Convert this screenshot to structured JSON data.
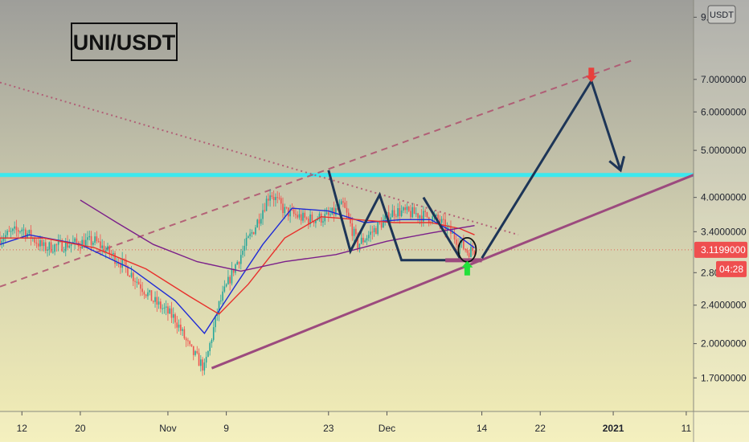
{
  "chart_data": {
    "type": "candlestick",
    "title": "UNI/USDT",
    "currency_button": "USDT",
    "y_scale": "log",
    "ylim": [
      1.45,
      10.2
    ],
    "y_ticks": [
      {
        "value": 9.4,
        "label": "9.",
        "partial": true
      },
      {
        "value": 7.0,
        "label": "7.0000000"
      },
      {
        "value": 6.0,
        "label": "6.0000000"
      },
      {
        "value": 5.0,
        "label": "5.0000000"
      },
      {
        "value": 4.0,
        "label": "4.0000000"
      },
      {
        "value": 3.4,
        "label": "3.4000000"
      },
      {
        "value": 2.8,
        "label": "2.80"
      },
      {
        "value": 2.4,
        "label": "2.4000000"
      },
      {
        "value": 2.0,
        "label": "2.0000000"
      },
      {
        "value": 1.7,
        "label": "1.7000000"
      }
    ],
    "x_axis": {
      "start": "2020-10-09",
      "end": "2021-01-12",
      "ticks": [
        {
          "date": "2020-10-12",
          "label": "12",
          "bold": false
        },
        {
          "date": "2020-10-20",
          "label": "20",
          "bold": false
        },
        {
          "date": "2020-11-01",
          "label": "Nov",
          "bold": false
        },
        {
          "date": "2020-11-09",
          "label": "9",
          "bold": false
        },
        {
          "date": "2020-11-23",
          "label": "23",
          "bold": false
        },
        {
          "date": "2020-12-01",
          "label": "Dec",
          "bold": false
        },
        {
          "date": "2020-12-14",
          "label": "14",
          "bold": false
        },
        {
          "date": "2020-12-22",
          "label": "22",
          "bold": false
        },
        {
          "date": "2021-01-01",
          "label": "2021",
          "bold": true
        },
        {
          "date": "2021-01-11",
          "label": "11",
          "bold": false
        }
      ]
    },
    "last_price": {
      "value": 3.1199,
      "label": "3.1199000",
      "countdown": "04:28"
    },
    "price_anchors": [
      [
        "2020-10-09",
        3.3
      ],
      [
        "2020-10-12",
        3.45
      ],
      [
        "2020-10-15",
        3.15
      ],
      [
        "2020-10-18",
        3.2
      ],
      [
        "2020-10-22",
        3.25
      ],
      [
        "2020-10-26",
        2.9
      ],
      [
        "2020-10-30",
        2.45
      ],
      [
        "2020-11-02",
        2.25
      ],
      [
        "2020-11-04",
        1.95
      ],
      [
        "2020-11-06",
        1.78
      ],
      [
        "2020-11-08",
        2.4
      ],
      [
        "2020-11-10",
        2.85
      ],
      [
        "2020-11-13",
        3.5
      ],
      [
        "2020-11-15",
        4.1
      ],
      [
        "2020-11-17",
        3.75
      ],
      [
        "2020-11-20",
        3.6
      ],
      [
        "2020-11-23",
        3.65
      ],
      [
        "2020-11-25",
        3.85
      ],
      [
        "2020-11-27",
        3.2
      ],
      [
        "2020-11-29",
        3.4
      ],
      [
        "2020-12-02",
        3.75
      ],
      [
        "2020-12-05",
        3.7
      ],
      [
        "2020-12-08",
        3.6
      ],
      [
        "2020-12-10",
        3.35
      ],
      [
        "2020-12-12",
        3.1
      ],
      [
        "2020-12-13",
        3.12
      ]
    ],
    "moving_averages": [
      {
        "color": "#1f2bd6",
        "anchors": [
          [
            "2020-10-09",
            3.2
          ],
          [
            "2020-10-13",
            3.35
          ],
          [
            "2020-10-20",
            3.2
          ],
          [
            "2020-10-27",
            2.85
          ],
          [
            "2020-11-02",
            2.45
          ],
          [
            "2020-11-06",
            2.1
          ],
          [
            "2020-11-10",
            2.6
          ],
          [
            "2020-11-14",
            3.2
          ],
          [
            "2020-11-18",
            3.8
          ],
          [
            "2020-11-23",
            3.75
          ],
          [
            "2020-11-28",
            3.55
          ],
          [
            "2020-12-03",
            3.6
          ],
          [
            "2020-12-07",
            3.6
          ],
          [
            "2020-12-10",
            3.4
          ],
          [
            "2020-12-13",
            3.15
          ]
        ]
      },
      {
        "color": "#e8302c",
        "anchors": [
          [
            "2020-10-09",
            3.3
          ],
          [
            "2020-10-15",
            3.3
          ],
          [
            "2020-10-22",
            3.15
          ],
          [
            "2020-10-29",
            2.85
          ],
          [
            "2020-11-04",
            2.5
          ],
          [
            "2020-11-08",
            2.3
          ],
          [
            "2020-11-12",
            2.65
          ],
          [
            "2020-11-17",
            3.3
          ],
          [
            "2020-11-22",
            3.65
          ],
          [
            "2020-11-27",
            3.6
          ],
          [
            "2020-12-02",
            3.55
          ],
          [
            "2020-12-07",
            3.55
          ],
          [
            "2020-12-11",
            3.45
          ],
          [
            "2020-12-13",
            3.35
          ]
        ]
      },
      {
        "color": "#7b1f8a",
        "anchors": [
          [
            "2020-10-20",
            3.95
          ],
          [
            "2020-10-25",
            3.55
          ],
          [
            "2020-10-30",
            3.2
          ],
          [
            "2020-11-05",
            2.95
          ],
          [
            "2020-11-11",
            2.82
          ],
          [
            "2020-11-17",
            2.95
          ],
          [
            "2020-11-24",
            3.05
          ],
          [
            "2020-12-01",
            3.25
          ],
          [
            "2020-12-07",
            3.38
          ],
          [
            "2020-12-13",
            3.5
          ]
        ]
      }
    ],
    "annotations": {
      "resistance_level": {
        "value": 4.45,
        "color": "#3ce8ee"
      },
      "support_trendline": {
        "from": [
          "2020-11-07",
          1.78
        ],
        "to": [
          "2021-01-12",
          4.45
        ],
        "color": "#9c4a7e"
      },
      "upper_channel_dashed": {
        "from": [
          "2020-10-09",
          2.62
        ],
        "to": [
          "2021-01-04",
          7.7
        ],
        "color": "#b0506e"
      },
      "descending_dotted": {
        "from": [
          "2020-10-09",
          6.9
        ],
        "to": [
          "2020-12-19",
          3.35
        ],
        "color": "#b0506e"
      },
      "pattern_zigzag": [
        [
          "2020-11-23",
          4.55
        ],
        [
          "2020-11-26",
          3.1
        ],
        [
          "2020-11-30",
          4.05
        ],
        [
          "2020-12-03",
          2.97
        ],
        [
          "2020-12-11",
          2.97
        ]
      ],
      "pattern_second_leg": [
        [
          "2020-12-06",
          4.0
        ],
        [
          "2020-12-11",
          3.0
        ]
      ],
      "projection": [
        [
          "2020-12-14",
          3.0
        ],
        [
          "2020-12-29",
          6.95
        ],
        [
          "2021-01-02",
          4.55
        ]
      ],
      "base_line": {
        "from": [
          "2020-12-09",
          2.97
        ],
        "to": [
          "2020-12-14",
          2.97
        ],
        "color": "#9c4a7e"
      },
      "circle_marker": [
        "2020-12-12",
        3.12
      ],
      "up_arrow": [
        "2020-12-12",
        2.86
      ],
      "down_arrow": [
        "2020-12-29",
        7.15
      ],
      "last_price_line_color": "#e8302c"
    },
    "grid": false,
    "legend": "none"
  }
}
